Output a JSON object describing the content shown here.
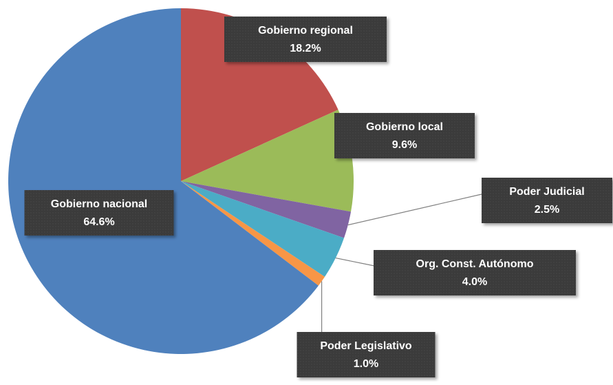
{
  "chart_data": {
    "type": "pie",
    "categories": [
      "Gobierno regional",
      "Gobierno local",
      "Poder Judicial",
      "Org. Const. Autónomo",
      "Poder Legislativo",
      "Gobierno nacional"
    ],
    "values": [
      18.2,
      9.6,
      2.5,
      4.0,
      1.0,
      64.6
    ],
    "value_labels": [
      "18.2%",
      "9.6%",
      "2.5%",
      "4.0%",
      "1.0%",
      "64.6%"
    ],
    "colors": [
      "#c0504d",
      "#9bbb59",
      "#8064a2",
      "#4bacc6",
      "#f79646",
      "#4f81bd"
    ]
  }
}
